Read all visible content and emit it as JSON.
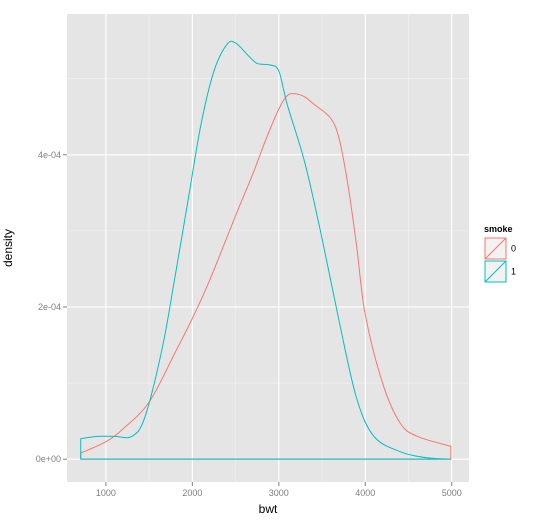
{
  "chart_data": {
    "type": "area",
    "xlabel": "bwt",
    "ylabel": "density",
    "xlim": [
      550,
      5200
    ],
    "ylim": [
      -3e-05,
      0.000585
    ],
    "x_ticks": [
      1000,
      2000,
      3000,
      4000,
      5000
    ],
    "x_tick_labels": [
      "1000",
      "2000",
      "3000",
      "4000",
      "5000"
    ],
    "y_ticks": [
      0,
      0.0002,
      0.0004
    ],
    "y_tick_labels": [
      "0e+00",
      "2e-04",
      "4e-04"
    ],
    "grid": true,
    "legend": {
      "title": "smoke",
      "position": "right",
      "entries": [
        {
          "label": "0",
          "color": "#F8766D"
        },
        {
          "label": "1",
          "color": "#00BFC4"
        }
      ]
    },
    "series": [
      {
        "name": "0",
        "color": "#F8766D",
        "x_range": [
          709,
          4990
        ],
        "points": [
          [
            709,
            8e-06
          ],
          [
            1000,
            2.3e-05
          ],
          [
            1200,
            4e-05
          ],
          [
            1500,
            7.5e-05
          ],
          [
            1800,
            0.00014
          ],
          [
            2000,
            0.000185
          ],
          [
            2200,
            0.000235
          ],
          [
            2500,
            0.00032
          ],
          [
            2700,
            0.000375
          ],
          [
            2850,
            0.00042
          ],
          [
            3000,
            0.00046
          ],
          [
            3100,
            0.000478
          ],
          [
            3200,
            0.00048
          ],
          [
            3300,
            0.000476
          ],
          [
            3400,
            0.000467
          ],
          [
            3600,
            0.000448
          ],
          [
            3700,
            0.00042
          ],
          [
            3800,
            0.00036
          ],
          [
            3900,
            0.00028
          ],
          [
            4000,
            0.00019
          ],
          [
            4200,
            0.0001
          ],
          [
            4400,
            4.8e-05
          ],
          [
            4600,
            3e-05
          ],
          [
            4990,
            1.7e-05
          ]
        ]
      },
      {
        "name": "1",
        "color": "#00BFC4",
        "x_range": [
          709,
          4990
        ],
        "points": [
          [
            709,
            2.7e-05
          ],
          [
            900,
            3e-05
          ],
          [
            1100,
            3e-05
          ],
          [
            1300,
            3e-05
          ],
          [
            1450,
            5.5e-05
          ],
          [
            1650,
            0.000145
          ],
          [
            1800,
            0.00024
          ],
          [
            1950,
            0.00034
          ],
          [
            2100,
            0.00044
          ],
          [
            2250,
            0.00051
          ],
          [
            2400,
            0.000545
          ],
          [
            2500,
            0.000547
          ],
          [
            2650,
            0.00053
          ],
          [
            2750,
            0.00052
          ],
          [
            2900,
            0.000518
          ],
          [
            3000,
            0.00051
          ],
          [
            3100,
            0.000465
          ],
          [
            3300,
            0.00039
          ],
          [
            3500,
            0.00029
          ],
          [
            3700,
            0.00018
          ],
          [
            3900,
            8e-05
          ],
          [
            4100,
            3e-05
          ],
          [
            4400,
            1e-05
          ],
          [
            4700,
            2e-06
          ],
          [
            4990,
            0.0
          ]
        ]
      }
    ]
  }
}
